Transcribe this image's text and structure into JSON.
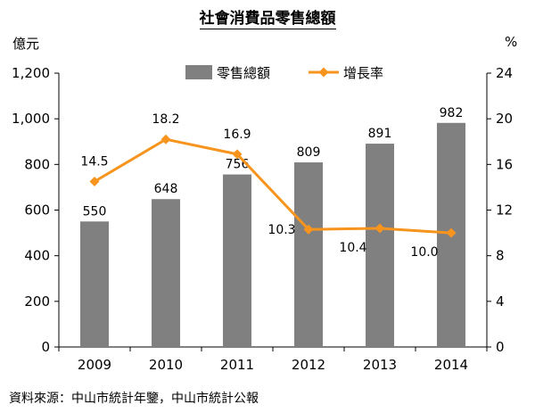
{
  "chart_data": {
    "type": "bar+line",
    "title": "社會消費品零售總額",
    "categories": [
      "2009",
      "2010",
      "2011",
      "2012",
      "2013",
      "2014"
    ],
    "series": [
      {
        "name": "零售總額",
        "type": "bar",
        "axis": "left",
        "values": [
          550,
          648,
          756,
          809,
          891,
          982
        ],
        "labels": [
          "550",
          "648",
          "756",
          "809",
          "891",
          "982"
        ],
        "color": "#808080"
      },
      {
        "name": "增長率",
        "type": "line",
        "axis": "right",
        "values": [
          14.5,
          18.2,
          16.9,
          10.3,
          10.4,
          10.0
        ],
        "labels": [
          "14.5",
          "18.2",
          "16.9",
          "10.3",
          "10.4",
          "10.0"
        ],
        "color": "#F7941D"
      }
    ],
    "ylabel_left": "億元",
    "ylabel_right": "%",
    "ylim_left": [
      0,
      1200
    ],
    "ylim_right": [
      0,
      24
    ],
    "yticks_left": [
      "0",
      "200",
      "400",
      "600",
      "800",
      "1,000",
      "1,200"
    ],
    "yticks_right": [
      "0",
      "4",
      "8",
      "12",
      "16",
      "20",
      "24"
    ],
    "legend_position": "top",
    "grid": false
  },
  "source": "資料來源：中山市統計年鑒，中山市統計公報"
}
